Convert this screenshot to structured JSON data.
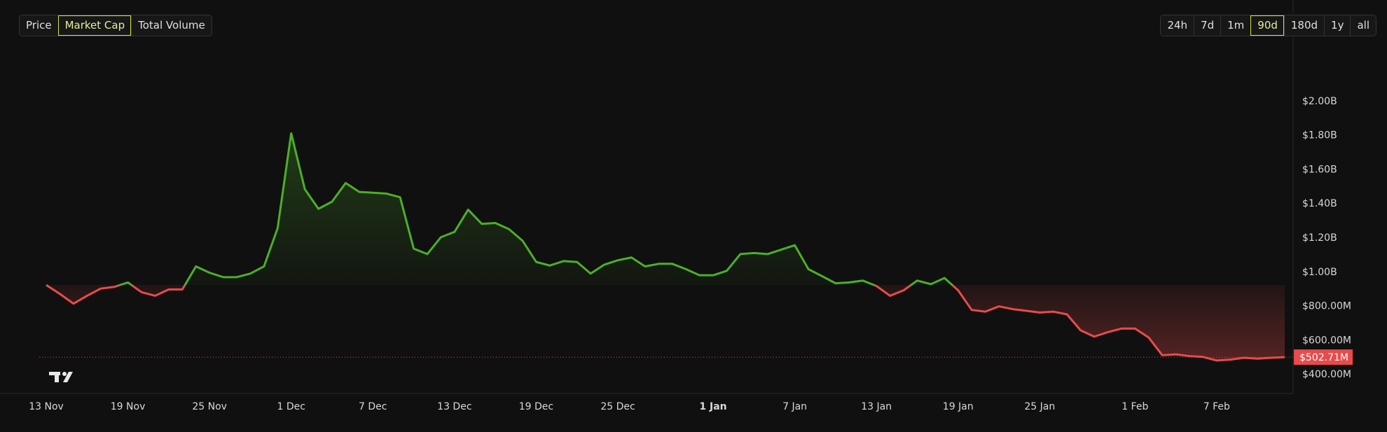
{
  "metric_tabs": [
    "Price",
    "Market Cap",
    "Total Volume"
  ],
  "active_metric": 1,
  "range_tabs": [
    "24h",
    "7d",
    "1m",
    "90d",
    "180d",
    "1y",
    "all"
  ],
  "active_range": 3,
  "chart_data": {
    "type": "line",
    "categories": [
      "13 Nov",
      null,
      null,
      null,
      null,
      null,
      "19 Nov",
      null,
      null,
      null,
      null,
      null,
      "25 Nov",
      null,
      null,
      null,
      null,
      null,
      "1 Dec",
      null,
      null,
      null,
      null,
      null,
      "7 Dec",
      null,
      null,
      null,
      null,
      null,
      "13 Dec",
      null,
      null,
      null,
      null,
      null,
      "19 Dec",
      null,
      null,
      null,
      null,
      null,
      "25 Dec",
      null,
      null,
      null,
      null,
      null,
      null,
      "1 Jan",
      null,
      null,
      null,
      null,
      null,
      "7 Jan",
      null,
      null,
      null,
      null,
      null,
      "13 Jan",
      null,
      null,
      null,
      null,
      null,
      "19 Jan",
      null,
      null,
      null,
      null,
      null,
      "25 Jan",
      null,
      null,
      null,
      null,
      null,
      null,
      "1 Feb",
      null,
      null,
      null,
      null,
      null,
      "7 Feb",
      null,
      null,
      null,
      null,
      null
    ],
    "bold_category_index": 49,
    "values": [
      925,
      873,
      816,
      862,
      904,
      914,
      940,
      883,
      862,
      899,
      899,
      1034,
      997,
      971,
      971,
      992,
      1034,
      1257,
      1813,
      1486,
      1371,
      1413,
      1522,
      1470,
      1465,
      1460,
      1439,
      1138,
      1106,
      1205,
      1236,
      1366,
      1283,
      1288,
      1252,
      1184,
      1060,
      1039,
      1065,
      1060,
      992,
      1044,
      1070,
      1086,
      1034,
      1049,
      1049,
      1018,
      982,
      982,
      1008,
      1106,
      1112,
      1106,
      1132,
      1158,
      1018,
      977,
      935,
      940,
      951,
      919,
      862,
      894,
      951,
      930,
      966,
      894,
      779,
      769,
      800,
      784,
      774,
      764,
      769,
      753,
      660,
      623,
      649,
      670,
      670,
      618,
      514,
      519,
      509,
      504,
      483,
      488,
      499,
      494,
      499,
      502.71
    ],
    "value_labels": [
      null,
      null,
      null,
      null,
      null,
      null,
      null,
      null,
      null,
      null,
      null,
      null,
      null,
      null,
      null,
      null,
      null,
      null,
      null,
      null,
      null,
      null,
      null,
      null,
      null,
      null,
      null,
      null,
      null,
      null,
      null,
      null,
      null,
      null,
      null,
      null,
      null,
      null,
      null,
      null,
      null,
      null,
      null,
      null,
      null,
      null,
      null,
      null,
      null,
      null,
      null,
      null,
      null,
      null,
      null,
      null,
      null,
      null,
      null,
      null,
      null,
      null,
      null,
      null,
      null,
      null,
      null,
      null,
      null,
      null,
      null,
      null,
      null,
      null,
      null,
      null,
      null,
      null,
      null,
      null,
      null,
      null,
      null,
      null,
      null,
      null,
      null,
      null,
      null,
      null,
      null,
      "$502.71M"
    ],
    "color_up": "#4caf28",
    "color_down": "#e84b4b",
    "ylim": [
      290,
      2290
    ],
    "yticks": [
      {
        "value": 400,
        "label": "$400.00M"
      },
      {
        "value": 600,
        "label": "$600.00M"
      },
      {
        "value": 800,
        "label": "$800.00M"
      },
      {
        "value": 1000,
        "label": "$1.00B"
      },
      {
        "value": 1200,
        "label": "$1.20B"
      },
      {
        "value": 1400,
        "label": "$1.40B"
      },
      {
        "value": 1600,
        "label": "$1.60B"
      },
      {
        "value": 1800,
        "label": "$1.80B"
      },
      {
        "value": 2000,
        "label": "$2.00B"
      }
    ],
    "grid": false
  }
}
